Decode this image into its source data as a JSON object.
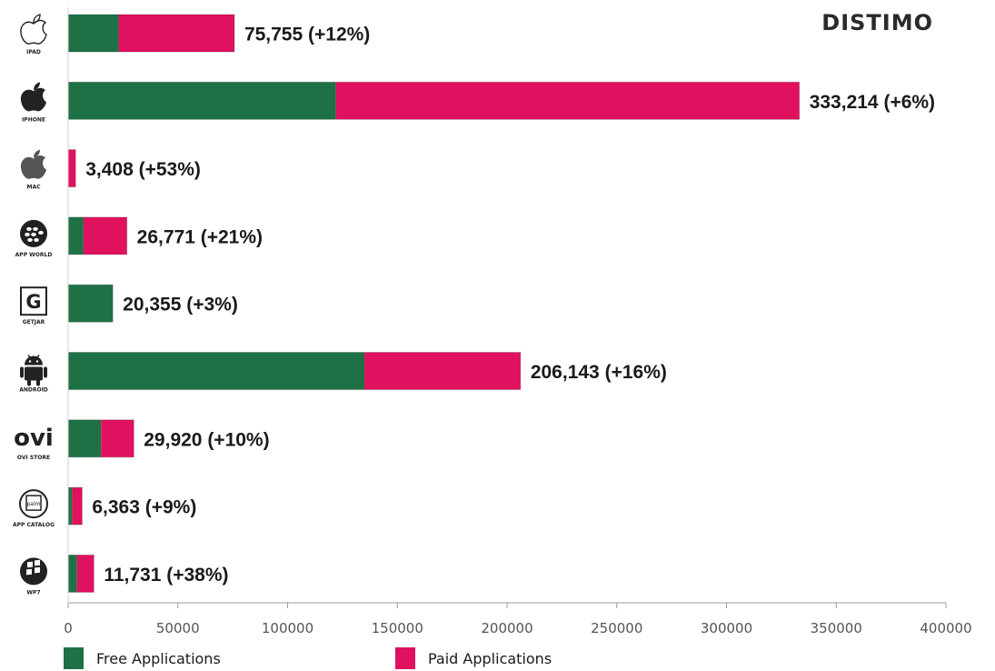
{
  "brand": "DISTIMO",
  "colors": {
    "free": "#1e7145",
    "paid": "#e0115f",
    "axis": "#999999",
    "text": "#1a1a1a"
  },
  "chart_data": {
    "type": "bar",
    "orientation": "horizontal",
    "stacked": true,
    "categories": [
      "IPAD",
      "IPHONE",
      "MAC",
      "APP WORLD",
      "GETJAR",
      "ANDROID",
      "OVI STORE",
      "APP CATALOG",
      "WP7"
    ],
    "series": [
      {
        "name": "Free Applications",
        "values": [
          23000,
          122000,
          0,
          7000,
          20355,
          135000,
          15000,
          1800,
          4000
        ]
      },
      {
        "name": "Paid Applications",
        "values": [
          52755,
          211214,
          3408,
          19771,
          0,
          71143,
          14920,
          4563,
          7731
        ]
      }
    ],
    "value_labels": [
      "75,755 (+12%)",
      "333,214 (+6%)",
      "3,408 (+53%)",
      "26,771 (+21%)",
      "20,355 (+3%)",
      "206,143 (+16%)",
      "29,920 (+10%)",
      "6,363 (+9%)",
      "11,731 (+38%)"
    ],
    "xlim": [
      0,
      400000
    ],
    "xticks": [
      0,
      50000,
      100000,
      150000,
      200000,
      250000,
      300000,
      350000,
      400000
    ],
    "legend": {
      "position": "bottom",
      "entries": [
        "Free Applications",
        "Paid Applications"
      ]
    },
    "grid": false
  },
  "platform_icons": [
    {
      "name": "apple-icon",
      "caption": "IPAD"
    },
    {
      "name": "apple-icon",
      "caption": "IPHONE"
    },
    {
      "name": "apple-icon",
      "caption": "MAC"
    },
    {
      "name": "blackberry-icon",
      "caption": "APP WORLD"
    },
    {
      "name": "getjar-icon",
      "caption": "GETJAR"
    },
    {
      "name": "android-icon",
      "caption": "ANDROID"
    },
    {
      "name": "ovi-icon",
      "caption": "OVI STORE",
      "text": "ovi"
    },
    {
      "name": "palm-icon",
      "caption": "APP CATALOG",
      "text": "palm"
    },
    {
      "name": "windows-icon",
      "caption": "WP7"
    }
  ]
}
